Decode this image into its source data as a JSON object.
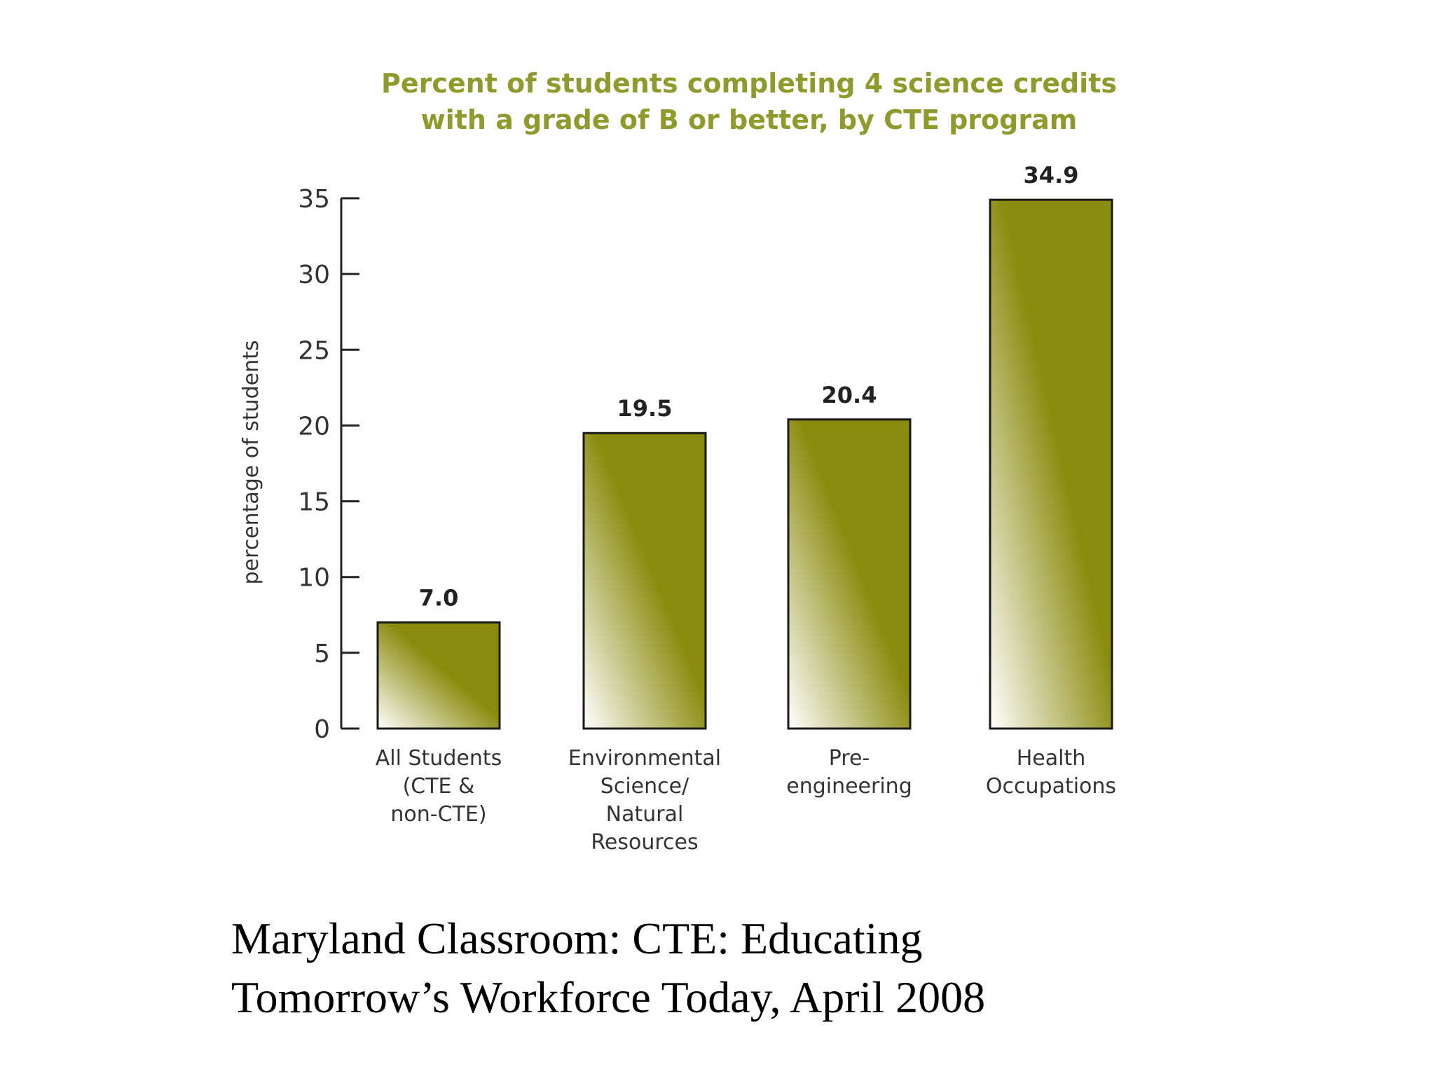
{
  "chart_data": {
    "type": "bar",
    "title_lines": [
      "Percent of students completing 4 science credits",
      "with a grade of B or better, by CTE program"
    ],
    "xlabel": "",
    "ylabel": "percentage of students",
    "ylim": [
      0,
      35
    ],
    "yticks": [
      "0",
      "5",
      "10",
      "15",
      "20",
      "25",
      "30",
      "35"
    ],
    "categories": [
      [
        "All Students",
        "(CTE &",
        "non-CTE)"
      ],
      [
        "Environmental",
        "Science/",
        "Natural",
        "Resources"
      ],
      [
        "Pre-",
        "engineering"
      ],
      [
        "Health",
        "Occupations"
      ]
    ],
    "values": [
      7.0,
      19.5,
      20.4,
      34.9
    ],
    "value_labels": [
      "7.0",
      "19.5",
      "20.4",
      "34.9"
    ],
    "bar_color": "#8a8b0e",
    "title_color": "#8f9a2c"
  },
  "caption": {
    "line1": "Maryland Classroom: CTE: Educating",
    "line2": "Tomorrow’s Workforce Today, April 2008"
  }
}
